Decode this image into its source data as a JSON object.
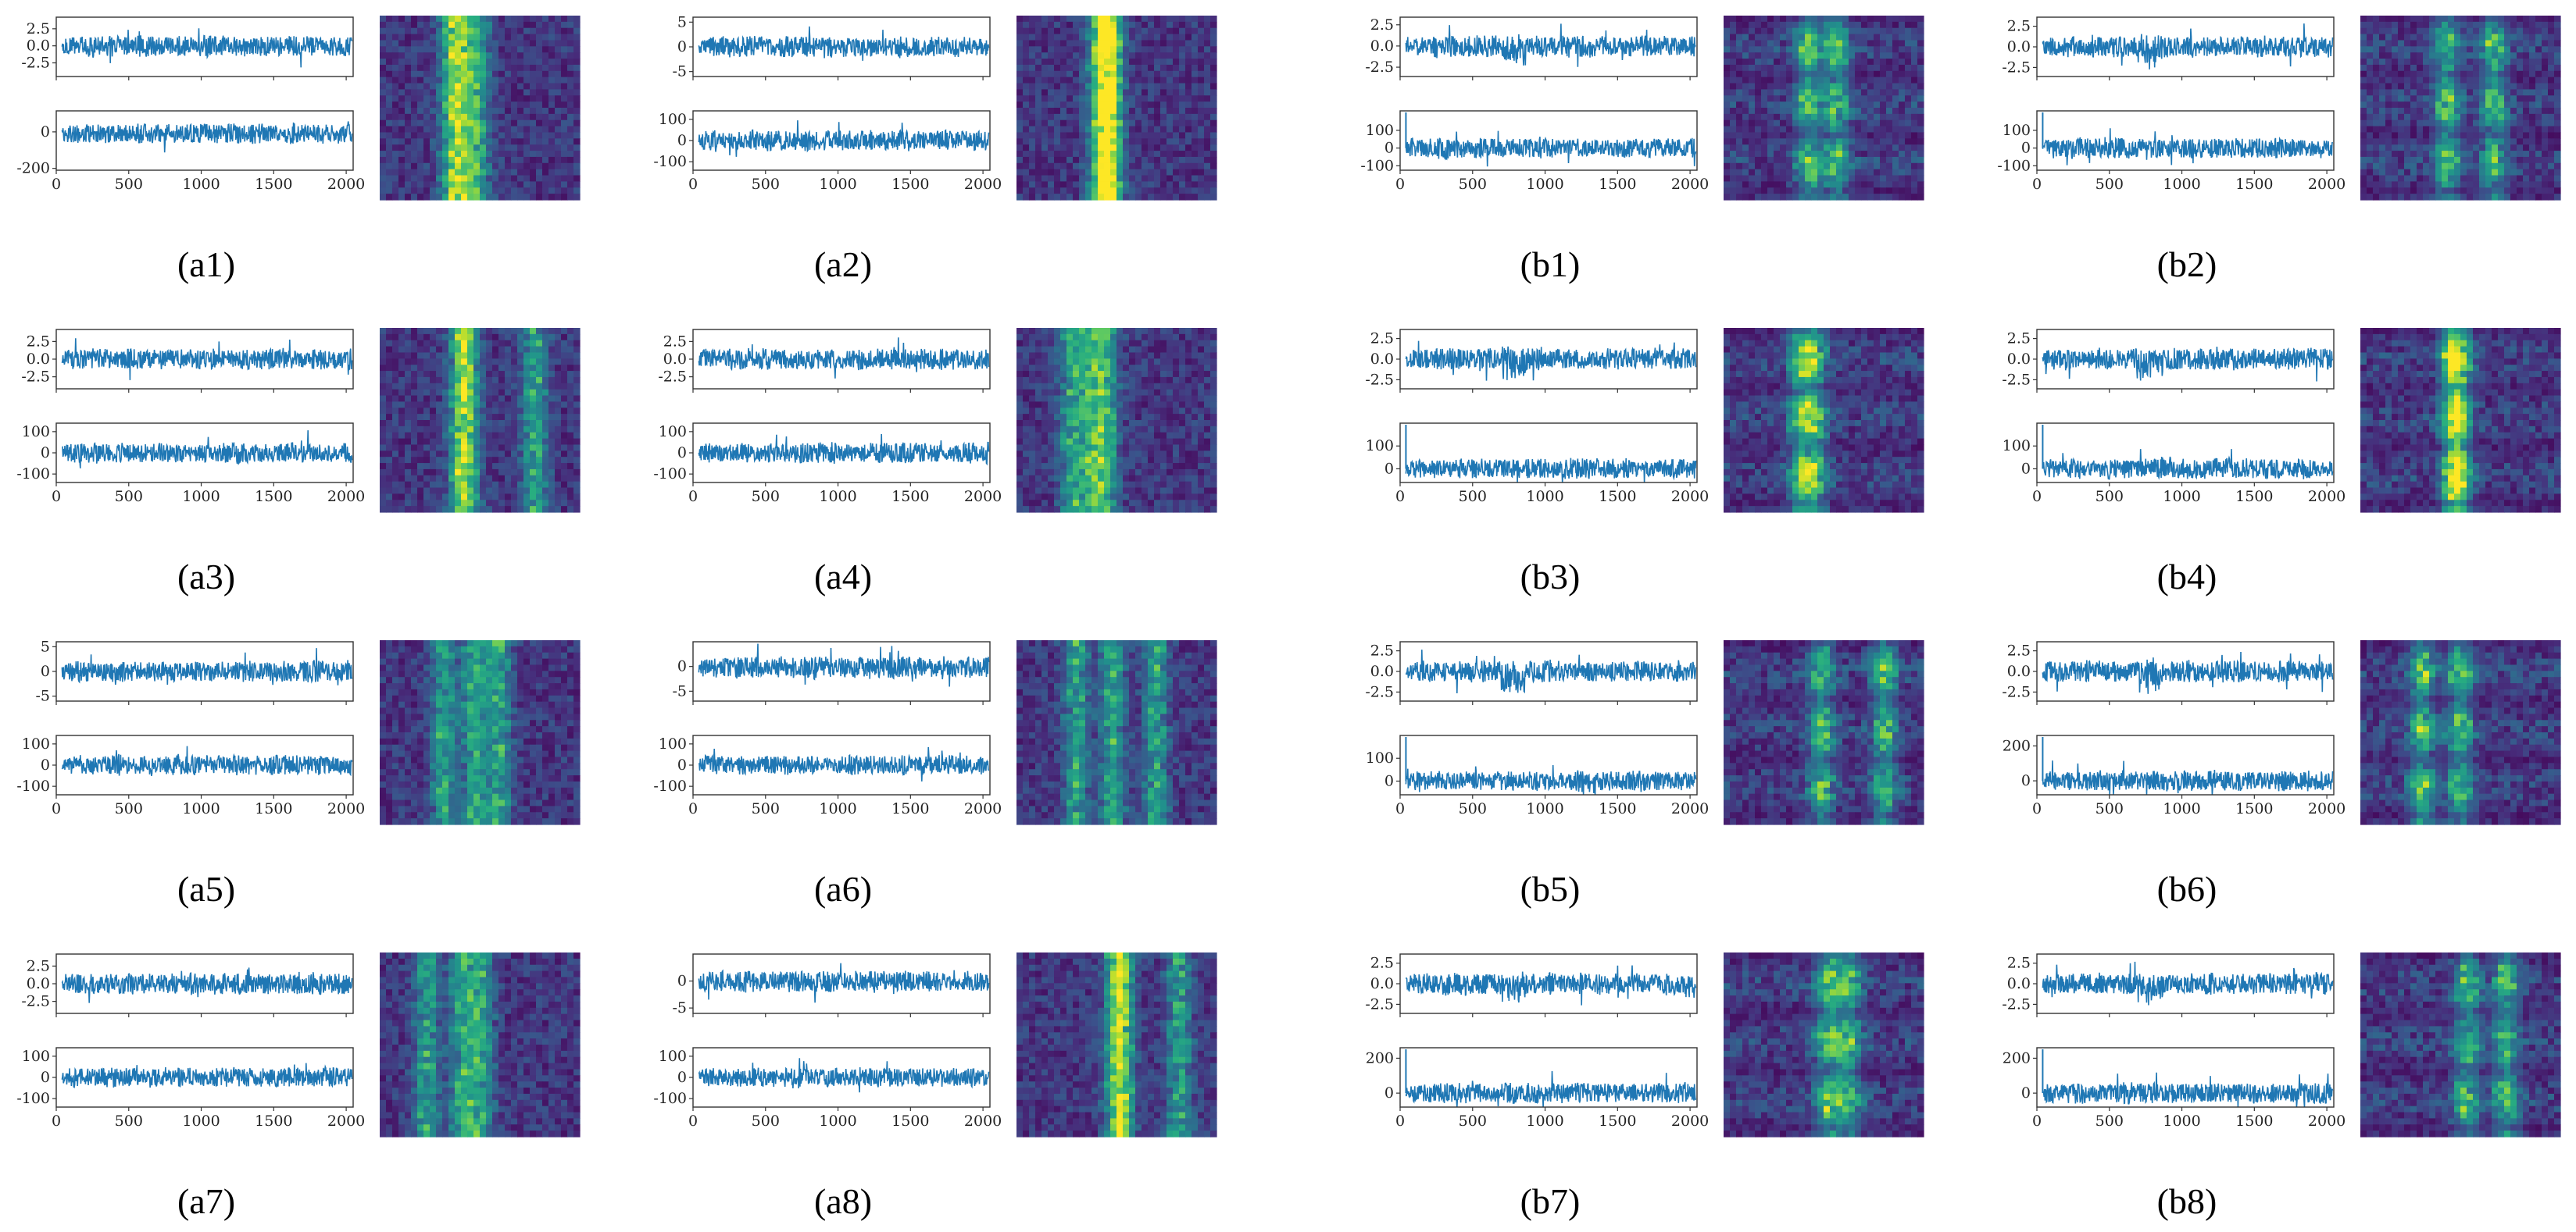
{
  "chart_data": {
    "type": "figure-grid",
    "description_free": true,
    "line_color": "#1f77b4",
    "colormap": [
      "#440154",
      "#472d7b",
      "#3b528b",
      "#2c728e",
      "#21918c",
      "#28ae80",
      "#5ec962",
      "#addc30",
      "#fde725"
    ],
    "x_ticks": [
      "0",
      "500",
      "1000",
      "1500",
      "2000"
    ],
    "xlim": [
      0,
      2048
    ],
    "panels": [
      {
        "label": "(a1)",
        "top": {
          "yticks": [
            "2.5",
            "0.0",
            "-2.5"
          ],
          "ylim": [
            -4.5,
            4.2
          ]
        },
        "bottom": {
          "yticks": [
            "0",
            "-200"
          ],
          "ylim": [
            -210,
            115
          ]
        }
      },
      {
        "label": "(a2)",
        "top": {
          "yticks": [
            "5",
            "0",
            "-5"
          ],
          "ylim": [
            -6,
            6
          ]
        },
        "bottom": {
          "yticks": [
            "100",
            "0",
            "-100"
          ],
          "ylim": [
            -140,
            140
          ]
        }
      },
      {
        "label": "(b1)",
        "top": {
          "yticks": [
            "2.5",
            "0.0",
            "-2.5"
          ],
          "ylim": [
            -3.6,
            3.4
          ]
        },
        "bottom": {
          "yticks": [
            "100",
            "0",
            "-100"
          ],
          "ylim": [
            -125,
            210
          ]
        }
      },
      {
        "label": "(b2)",
        "top": {
          "yticks": [
            "2.5",
            "0.0",
            "-2.5"
          ],
          "ylim": [
            -3.6,
            3.6
          ]
        },
        "bottom": {
          "yticks": [
            "100",
            "0",
            "-100"
          ],
          "ylim": [
            -125,
            210
          ]
        }
      },
      {
        "label": "(a3)",
        "top": {
          "yticks": [
            "2.5",
            "0.0",
            "-2.5"
          ],
          "ylim": [
            -4.2,
            4.2
          ]
        },
        "bottom": {
          "yticks": [
            "100",
            "0",
            "-100"
          ],
          "ylim": [
            -140,
            140
          ]
        }
      },
      {
        "label": "(a4)",
        "top": {
          "yticks": [
            "2.5",
            "0.0",
            "-2.5"
          ],
          "ylim": [
            -4.2,
            4.2
          ]
        },
        "bottom": {
          "yticks": [
            "100",
            "0",
            "-100"
          ],
          "ylim": [
            -140,
            140
          ]
        }
      },
      {
        "label": "(b3)",
        "top": {
          "yticks": [
            "2.5",
            "0.0",
            "-2.5"
          ],
          "ylim": [
            -3.6,
            3.6
          ]
        },
        "bottom": {
          "yticks": [
            "100",
            "0"
          ],
          "ylim": [
            -60,
            200
          ]
        }
      },
      {
        "label": "(b4)",
        "top": {
          "yticks": [
            "2.5",
            "0.0",
            "-2.5"
          ],
          "ylim": [
            -3.6,
            3.6
          ]
        },
        "bottom": {
          "yticks": [
            "100",
            "0"
          ],
          "ylim": [
            -60,
            200
          ]
        }
      },
      {
        "label": "(a5)",
        "top": {
          "yticks": [
            "5",
            "0",
            "-5"
          ],
          "ylim": [
            -6,
            6
          ]
        },
        "bottom": {
          "yticks": [
            "100",
            "0",
            "-100"
          ],
          "ylim": [
            -140,
            140
          ]
        }
      },
      {
        "label": "(a6)",
        "top": {
          "yticks": [
            "0",
            "-5"
          ],
          "ylim": [
            -7,
            5
          ]
        },
        "bottom": {
          "yticks": [
            "100",
            "0",
            "-100"
          ],
          "ylim": [
            -140,
            140
          ]
        }
      },
      {
        "label": "(b5)",
        "top": {
          "yticks": [
            "2.5",
            "0.0",
            "-2.5"
          ],
          "ylim": [
            -3.6,
            3.6
          ]
        },
        "bottom": {
          "yticks": [
            "100",
            "0"
          ],
          "ylim": [
            -60,
            200
          ]
        }
      },
      {
        "label": "(b6)",
        "top": {
          "yticks": [
            "2.5",
            "0.0",
            "-2.5"
          ],
          "ylim": [
            -3.6,
            3.6
          ]
        },
        "bottom": {
          "yticks": [
            "200",
            "0"
          ],
          "ylim": [
            -80,
            260
          ]
        }
      },
      {
        "label": "(a7)",
        "top": {
          "yticks": [
            "2.5",
            "0.0",
            "-2.5"
          ],
          "ylim": [
            -4.2,
            4.2
          ]
        },
        "bottom": {
          "yticks": [
            "100",
            "0",
            "-100"
          ],
          "ylim": [
            -140,
            140
          ]
        }
      },
      {
        "label": "(a8)",
        "top": {
          "yticks": [
            "0",
            "-5"
          ],
          "ylim": [
            -6,
            5
          ]
        },
        "bottom": {
          "yticks": [
            "100",
            "0",
            "-100"
          ],
          "ylim": [
            -140,
            140
          ]
        }
      },
      {
        "label": "(b7)",
        "top": {
          "yticks": [
            "2.5",
            "0.0",
            "-2.5"
          ],
          "ylim": [
            -3.6,
            3.6
          ]
        },
        "bottom": {
          "yticks": [
            "200",
            "0"
          ],
          "ylim": [
            -80,
            260
          ]
        }
      },
      {
        "label": "(b8)",
        "top": {
          "yticks": [
            "2.5",
            "0.0",
            "-2.5"
          ],
          "ylim": [
            -3.6,
            3.6
          ]
        },
        "bottom": {
          "yticks": [
            "200",
            "0"
          ],
          "ylim": [
            -80,
            260
          ]
        }
      }
    ]
  }
}
